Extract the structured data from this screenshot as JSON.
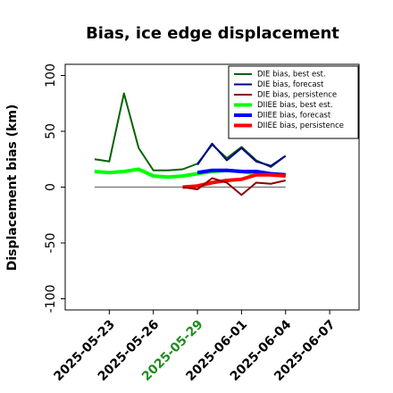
{
  "chart_data": {
    "type": "line",
    "title": "Bias, ice edge displacement",
    "y_label": "Displacement bias (km)",
    "x": [
      "2025-05-22",
      "2025-05-23",
      "2025-05-24",
      "2025-05-25",
      "2025-05-26",
      "2025-05-27",
      "2025-05-28",
      "2025-05-29",
      "2025-05-30",
      "2025-05-31",
      "2025-06-01",
      "2025-06-02",
      "2025-06-03",
      "2025-06-04"
    ],
    "xlim": [
      "2025-05-20",
      "2025-06-09"
    ],
    "xticks": [
      "2025-05-23",
      "2025-05-26",
      "2025-05-29",
      "2025-06-01",
      "2025-06-04",
      "2025-06-07"
    ],
    "highlight_xtick": "2025-05-29",
    "highlight_color": "#228b22",
    "ylim": [
      -110,
      110
    ],
    "yticks": [
      -100,
      -50,
      0,
      50,
      100
    ],
    "hline": 0,
    "hline_color": "#808080",
    "legend": "upper right",
    "series": [
      {
        "name": "DIE bias, best est.",
        "color": "#006400",
        "width": 2,
        "values": [
          25,
          23,
          84,
          35,
          15,
          15,
          16,
          21,
          38,
          26,
          36,
          24,
          18,
          28
        ]
      },
      {
        "name": "DIE bias, forecast",
        "color": "#00008b",
        "width": 2,
        "values": [
          null,
          null,
          null,
          null,
          null,
          null,
          null,
          20,
          39,
          24,
          35,
          23,
          19,
          28
        ]
      },
      {
        "name": "DIE bias, persistence",
        "color": "#8b0000",
        "width": 2,
        "values": [
          null,
          null,
          null,
          null,
          null,
          null,
          0,
          -2,
          8,
          4,
          -7,
          4,
          3,
          6
        ]
      },
      {
        "name": "DIIEE bias, best est.",
        "color": "#00ff00",
        "width": 4,
        "values": [
          14,
          13,
          14,
          16,
          10,
          9,
          10,
          12,
          14,
          15,
          14,
          12,
          11,
          11
        ]
      },
      {
        "name": "DIIEE bias, forecast",
        "color": "#0000ff",
        "width": 4,
        "values": [
          null,
          null,
          null,
          null,
          null,
          null,
          null,
          13,
          15,
          15,
          14,
          14,
          12,
          11
        ]
      },
      {
        "name": "DIIEE bias, persistence",
        "color": "#ff0000",
        "width": 4,
        "values": [
          null,
          null,
          null,
          null,
          null,
          null,
          0,
          1,
          4,
          6,
          7,
          11,
          11,
          10
        ]
      }
    ]
  }
}
